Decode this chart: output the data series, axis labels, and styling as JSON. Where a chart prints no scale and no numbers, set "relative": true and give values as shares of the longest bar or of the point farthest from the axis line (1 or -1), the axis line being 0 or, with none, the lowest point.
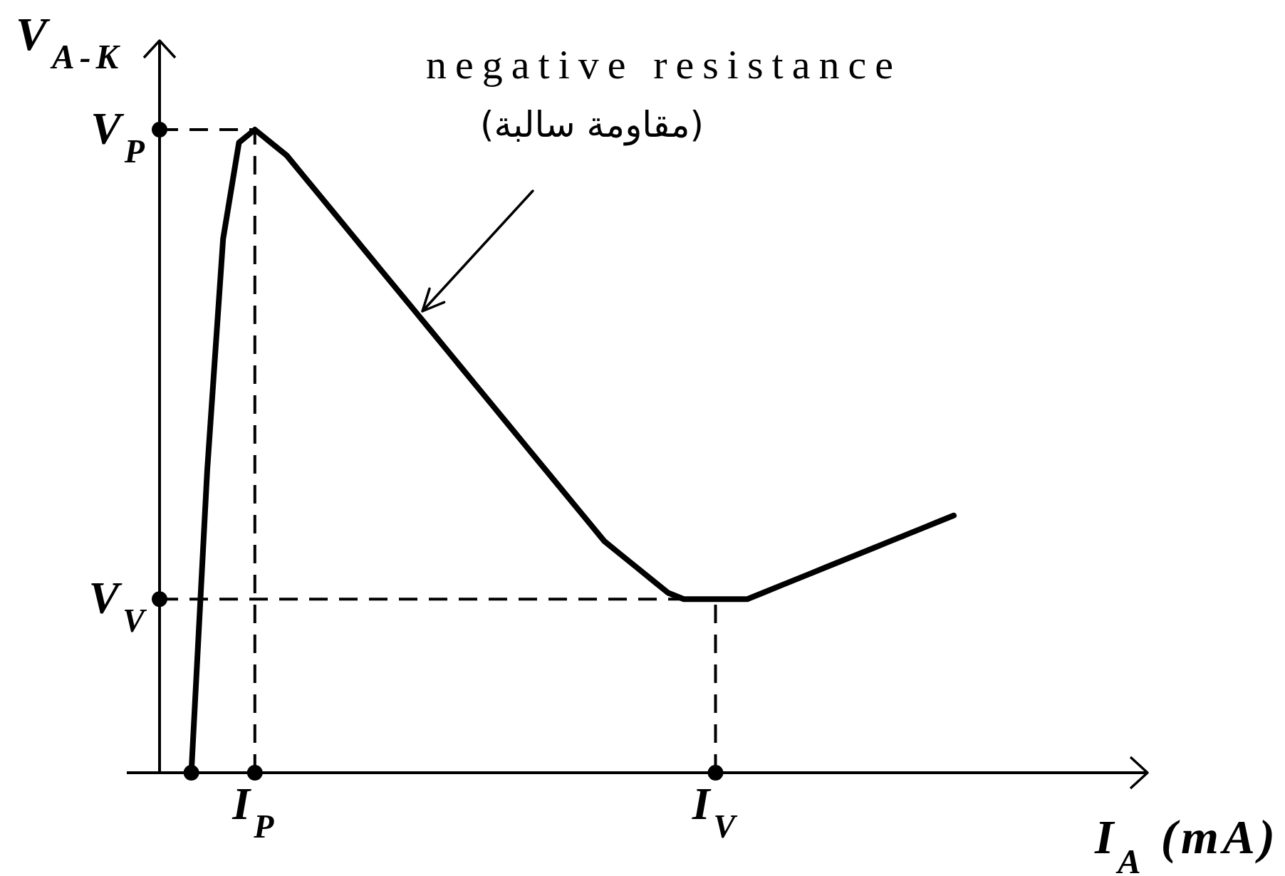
{
  "chart_data": {
    "type": "line",
    "relative": true,
    "xlabel": "I$_{A}$ (mA)",
    "ylabel": "V$_{A-K}$",
    "categories": [
      null,
      null,
      null,
      null,
      null,
      null,
      "I$_{P}$",
      null,
      null,
      null,
      null,
      null,
      null,
      null,
      null,
      null,
      null,
      null,
      null,
      null,
      null,
      null,
      null,
      null,
      null,
      null,
      null,
      null,
      null,
      null,
      null,
      null,
      null,
      null,
      null,
      "I$_{V}$",
      null,
      null,
      null,
      null,
      null,
      null,
      null,
      null,
      null,
      null,
      null,
      null,
      null,
      null,
      null
    ],
    "series": [
      {
        "color": "#000000",
        "values": [
          null,
          null,
          0,
          0.47,
          0.83,
          0.98,
          1,
          0.98,
          0.96,
          0.93,
          0.9,
          0.87,
          0.84,
          0.81,
          0.78,
          0.75,
          0.72,
          0.69,
          0.66,
          0.63,
          0.6,
          0.57,
          0.54,
          0.51,
          0.48,
          0.45,
          0.42,
          0.39,
          0.36,
          0.34,
          0.32,
          0.3,
          0.28,
          0.27,
          0.27,
          0.27,
          0.27,
          0.27,
          0.28,
          0.29,
          0.3,
          0.31,
          0.32,
          0.33,
          0.34,
          0.35,
          0.36,
          0.37,
          0.38,
          0.39,
          0.4
        ]
      },
      {
        "type": "scatter",
        "color": "#000000",
        "values": [
          1,
          null,
          0,
          null,
          null,
          null,
          0,
          null,
          null,
          null,
          null,
          null,
          null,
          null,
          null,
          null,
          null,
          null,
          null,
          null,
          null,
          null,
          null,
          null,
          null,
          null,
          null,
          null,
          null,
          null,
          null,
          null,
          null,
          null,
          null,
          0,
          null,
          null,
          null,
          null,
          null,
          null,
          null,
          null,
          null,
          null,
          null,
          null,
          null,
          null,
          null
        ]
      },
      {
        "type": "scatter",
        "color": "#000000",
        "values": [
          0.27,
          null,
          null,
          null,
          null,
          null,
          null,
          null,
          null,
          null,
          null,
          null,
          null,
          null,
          null,
          null,
          null,
          null,
          null,
          null,
          null,
          null,
          null,
          null,
          null,
          null,
          null,
          null,
          null,
          null,
          null,
          null,
          null,
          null,
          null,
          null,
          null,
          null,
          null,
          null,
          null,
          null,
          null,
          null,
          null,
          null,
          null,
          null,
          null,
          null,
          null
        ]
      }
    ],
    "ref_lines": [
      {
        "axis": "y",
        "value": 1,
        "label": "V$_{P}$",
        "line_style": "dashed",
        "color": "#000000"
      },
      {
        "axis": "x",
        "value": "I$_{P}$",
        "line_style": "dashed",
        "color": "#000000"
      },
      {
        "axis": "y",
        "value": 0.27,
        "label": "V$_{V}$",
        "line_style": "dashed",
        "color": "#000000"
      },
      {
        "axis": "x",
        "value": "I$_{V}$",
        "line_style": "dashed",
        "color": "#000000"
      }
    ],
    "annotations": [
      "negative resistance",
      "(مقاومة سالبة)"
    ]
  }
}
